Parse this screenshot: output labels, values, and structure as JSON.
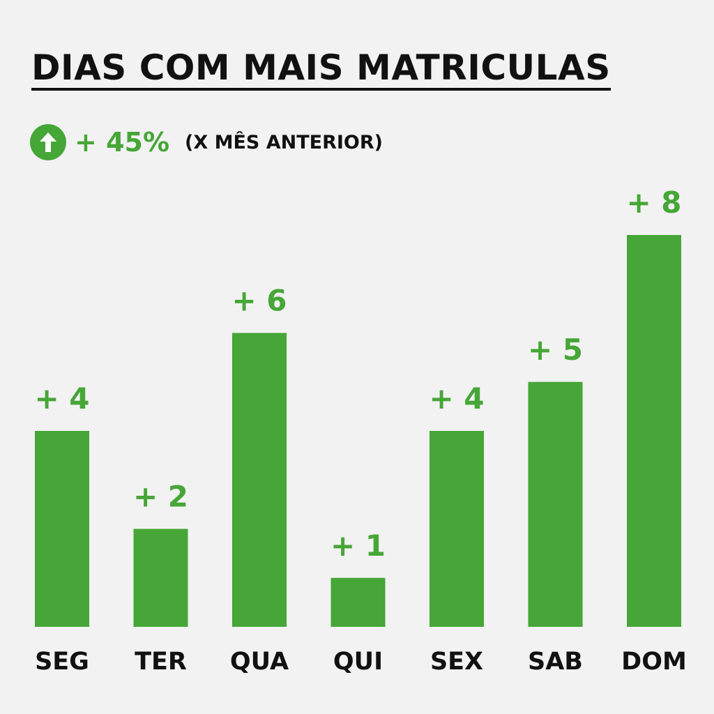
{
  "title": "DIAS COM MAIS MATRICULAS",
  "growth": {
    "icon": "arrow-up-circle-icon",
    "value": "+ 45%",
    "note": "(X MÊS ANTERIOR)"
  },
  "colors": {
    "accent": "#46a637",
    "text": "#111111",
    "background": "#f2f2f2"
  },
  "chart_data": {
    "type": "bar",
    "categories": [
      "SEG",
      "TER",
      "QUA",
      "QUI",
      "SEX",
      "SAB",
      "DOM"
    ],
    "values": [
      4,
      2,
      6,
      1,
      4,
      5,
      8
    ],
    "data_labels": [
      "+ 4",
      "+ 2",
      "+ 6",
      "+ 1",
      "+ 4",
      "+ 5",
      "+ 8"
    ],
    "ylim": [
      0,
      8
    ],
    "grid": false,
    "legend": "none"
  }
}
